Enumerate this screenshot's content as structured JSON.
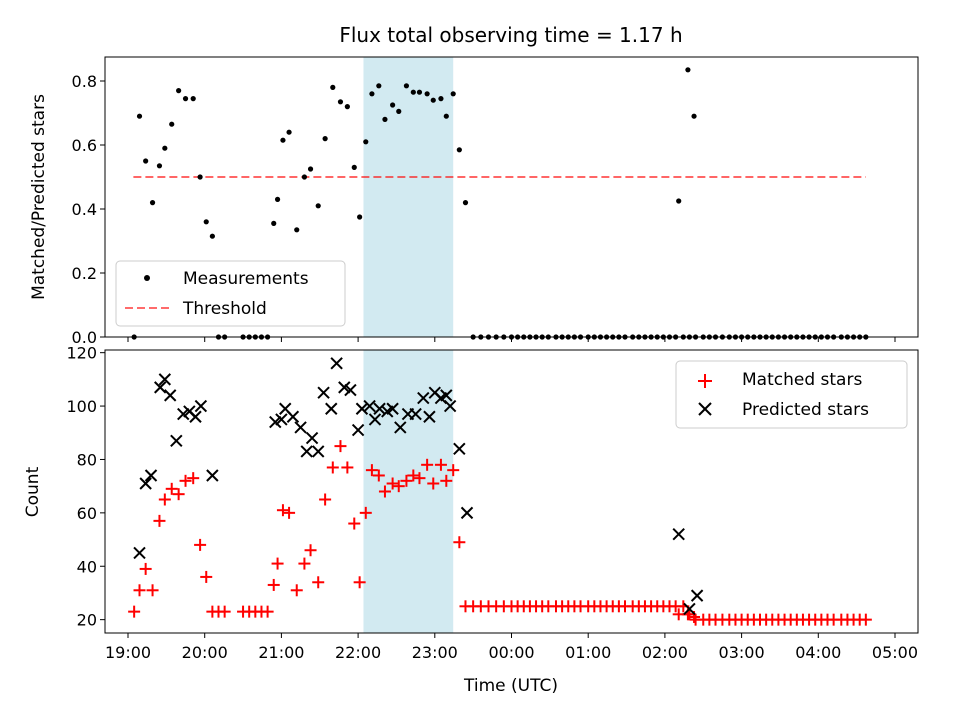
{
  "chart_data": [
    {
      "type": "scatter",
      "title": "Flux total observing time = 1.17 h",
      "xlabel": "",
      "ylabel": "Matched/Predicted stars",
      "ylim": [
        0,
        0.875
      ],
      "xlim": [
        18.7,
        29.3
      ],
      "yticks": [
        "0.0",
        "0.2",
        "0.4",
        "0.6",
        "0.8"
      ],
      "yticks_values": [
        0,
        0.2,
        0.4,
        0.6,
        0.8
      ],
      "shaded_span": [
        22.07,
        23.24
      ],
      "shaded_color": "#add8e6",
      "legend": {
        "placement": "lower-left",
        "entries": [
          "Measurements",
          "Threshold"
        ]
      },
      "threshold": {
        "name": "Threshold",
        "value": 0.5,
        "x_range": [
          19.07,
          28.62
        ],
        "color": "#ff0000"
      },
      "series": [
        {
          "name": "Measurements",
          "color": "#000000",
          "x": [
            19.08,
            19.15,
            19.23,
            19.32,
            19.41,
            19.48,
            19.57,
            19.66,
            19.75,
            19.85,
            19.94,
            20.02,
            20.1,
            20.18,
            20.26,
            20.5,
            20.58,
            20.66,
            20.74,
            20.82,
            20.9,
            20.95,
            21.02,
            21.1,
            21.2,
            21.3,
            21.38,
            21.48,
            21.57,
            21.67,
            21.77,
            21.86,
            21.95,
            22.02,
            22.1,
            22.18,
            22.27,
            22.35,
            22.45,
            22.53,
            22.63,
            22.72,
            22.8,
            22.9,
            22.98,
            23.08,
            23.15,
            23.24,
            23.32,
            23.4,
            23.5,
            23.6,
            23.7,
            23.8,
            23.9,
            24.0,
            24.08,
            24.16,
            24.24,
            24.32,
            24.4,
            24.48,
            24.58,
            24.66,
            24.74,
            24.82,
            24.9,
            25.0,
            25.08,
            25.16,
            25.24,
            25.32,
            25.4,
            25.48,
            25.58,
            25.66,
            25.74,
            25.82,
            25.9,
            25.98,
            26.06,
            26.14,
            26.24,
            26.32,
            26.4,
            26.5,
            26.58,
            26.66,
            26.75,
            26.84,
            26.92,
            27.0,
            27.08,
            27.16,
            27.24,
            27.32,
            27.4,
            27.48,
            27.56,
            27.64,
            27.72,
            27.8,
            27.88,
            27.96,
            28.04,
            28.12,
            28.2,
            28.3,
            28.38,
            28.46,
            28.54,
            28.62,
            26.18,
            26.3,
            26.38
          ],
          "y": [
            0.0,
            0.69,
            0.55,
            0.42,
            0.535,
            0.59,
            0.665,
            0.77,
            0.745,
            0.745,
            0.5,
            0.36,
            0.315,
            0.0,
            0.0,
            0.0,
            0.0,
            0.0,
            0.0,
            0.0,
            0.355,
            0.43,
            0.615,
            0.64,
            0.335,
            0.5,
            0.525,
            0.41,
            0.62,
            0.78,
            0.735,
            0.72,
            0.53,
            0.375,
            0.61,
            0.76,
            0.785,
            0.68,
            0.725,
            0.705,
            0.785,
            0.765,
            0.765,
            0.76,
            0.74,
            0.745,
            0.69,
            0.76,
            0.585,
            0.42,
            0.0,
            0.0,
            0.0,
            0.0,
            0.0,
            0.0,
            0.0,
            0.0,
            0.0,
            0.0,
            0.0,
            0.0,
            0.0,
            0.0,
            0.0,
            0.0,
            0.0,
            0.0,
            0.0,
            0.0,
            0.0,
            0.0,
            0.0,
            0.0,
            0.0,
            0.0,
            0.0,
            0.0,
            0.0,
            0.0,
            0.0,
            0.0,
            0.0,
            0.0,
            0.0,
            0.0,
            0.0,
            0.0,
            0.0,
            0.0,
            0.0,
            0.0,
            0.0,
            0.0,
            0.0,
            0.0,
            0.0,
            0.0,
            0.0,
            0.0,
            0.0,
            0.0,
            0.0,
            0.0,
            0.0,
            0.0,
            0.0,
            0.0,
            0.0,
            0.0,
            0.0,
            0.0,
            0.425,
            0.835,
            0.69
          ]
        }
      ]
    },
    {
      "type": "scatter",
      "title": "",
      "xlabel": "Time (UTC)",
      "ylabel": "Count",
      "ylim": [
        15,
        121
      ],
      "xlim": [
        18.7,
        29.3
      ],
      "yticks": [
        "20",
        "40",
        "60",
        "80",
        "100",
        "120"
      ],
      "yticks_values": [
        20,
        40,
        60,
        80,
        100,
        120
      ],
      "xticks": [
        "19:00",
        "20:00",
        "21:00",
        "22:00",
        "23:00",
        "00:00",
        "01:00",
        "02:00",
        "03:00",
        "04:00",
        "05:00"
      ],
      "xticks_values": [
        19,
        20,
        21,
        22,
        23,
        24,
        25,
        26,
        27,
        28,
        29
      ],
      "shaded_span": [
        22.07,
        23.24
      ],
      "shaded_color": "#add8e6",
      "legend": {
        "placement": "top-right",
        "entries": [
          "Matched stars",
          "Predicted stars"
        ]
      },
      "series": [
        {
          "name": "Matched stars",
          "marker": "+",
          "color": "#ff0000",
          "x": [
            19.08,
            19.15,
            19.23,
            19.32,
            19.41,
            19.48,
            19.57,
            19.66,
            19.75,
            19.85,
            19.94,
            20.02,
            20.1,
            20.18,
            20.26,
            20.5,
            20.58,
            20.66,
            20.74,
            20.82,
            20.9,
            20.95,
            21.02,
            21.1,
            21.2,
            21.3,
            21.38,
            21.48,
            21.57,
            21.67,
            21.77,
            21.86,
            21.95,
            22.02,
            22.1,
            22.18,
            22.27,
            22.35,
            22.45,
            22.53,
            22.63,
            22.72,
            22.8,
            22.9,
            22.98,
            23.08,
            23.15,
            23.24,
            23.32,
            23.4,
            23.5,
            23.6,
            23.7,
            23.8,
            23.9,
            24.0,
            24.08,
            24.16,
            24.24,
            24.32,
            24.4,
            24.48,
            24.58,
            24.66,
            24.74,
            24.82,
            24.9,
            25.0,
            25.08,
            25.16,
            25.24,
            25.32,
            25.4,
            25.48,
            25.58,
            25.66,
            25.74,
            25.82,
            25.9,
            25.98,
            26.06,
            26.14,
            26.24,
            26.32,
            26.4,
            26.5,
            26.58,
            26.66,
            26.75,
            26.84,
            26.92,
            27.0,
            27.08,
            27.16,
            27.24,
            27.32,
            27.4,
            27.48,
            27.56,
            27.64,
            27.72,
            27.8,
            27.88,
            27.96,
            28.04,
            28.12,
            28.2,
            28.3,
            28.38,
            28.46,
            28.54,
            28.62,
            26.18,
            26.3,
            26.38
          ],
          "y": [
            23,
            31,
            39,
            31,
            57,
            65,
            69,
            67,
            72,
            73,
            48,
            36,
            23,
            23,
            23,
            23,
            23,
            23,
            23,
            23,
            33,
            41,
            61,
            60,
            31,
            41,
            46,
            34,
            65,
            77,
            85,
            77,
            56,
            34,
            60,
            76,
            74,
            68,
            71,
            70,
            72,
            74,
            73,
            78,
            71,
            78,
            72,
            76,
            49,
            25,
            25,
            25,
            25,
            25,
            25,
            25,
            25,
            25,
            25,
            25,
            25,
            25,
            25,
            25,
            25,
            25,
            25,
            25,
            25,
            25,
            25,
            25,
            25,
            25,
            25,
            25,
            25,
            25,
            25,
            25,
            25,
            25,
            25,
            22,
            20,
            20,
            20,
            20,
            20,
            20,
            20,
            20,
            20,
            20,
            20,
            20,
            20,
            20,
            20,
            20,
            20,
            20,
            20,
            20,
            20,
            20,
            20,
            20,
            20,
            20,
            20,
            20,
            22,
            22,
            21
          ]
        },
        {
          "name": "Predicted stars",
          "marker": "x",
          "color": "#000000",
          "x": [
            19.15,
            19.23,
            19.3,
            19.42,
            19.48,
            19.55,
            19.63,
            19.72,
            19.8,
            19.88,
            19.95,
            20.1,
            20.92,
            21.0,
            21.05,
            21.15,
            21.25,
            21.33,
            21.4,
            21.48,
            21.55,
            21.65,
            21.72,
            21.82,
            21.9,
            22.0,
            22.05,
            22.15,
            22.22,
            22.28,
            22.38,
            22.45,
            22.55,
            22.65,
            22.75,
            22.85,
            22.93,
            23.0,
            23.08,
            23.15,
            23.2,
            23.32,
            23.42,
            26.18,
            26.32,
            26.42
          ],
          "y": [
            45,
            71,
            74,
            107,
            110,
            104,
            87,
            97,
            98,
            96,
            100,
            74,
            94,
            95,
            99,
            96,
            92,
            83,
            88,
            83,
            105,
            99,
            116,
            107,
            106,
            91,
            99,
            100,
            95,
            99,
            98,
            99,
            92,
            97,
            97,
            103,
            96,
            105,
            103,
            104,
            100,
            84,
            60,
            52,
            24,
            29
          ]
        }
      ]
    }
  ]
}
